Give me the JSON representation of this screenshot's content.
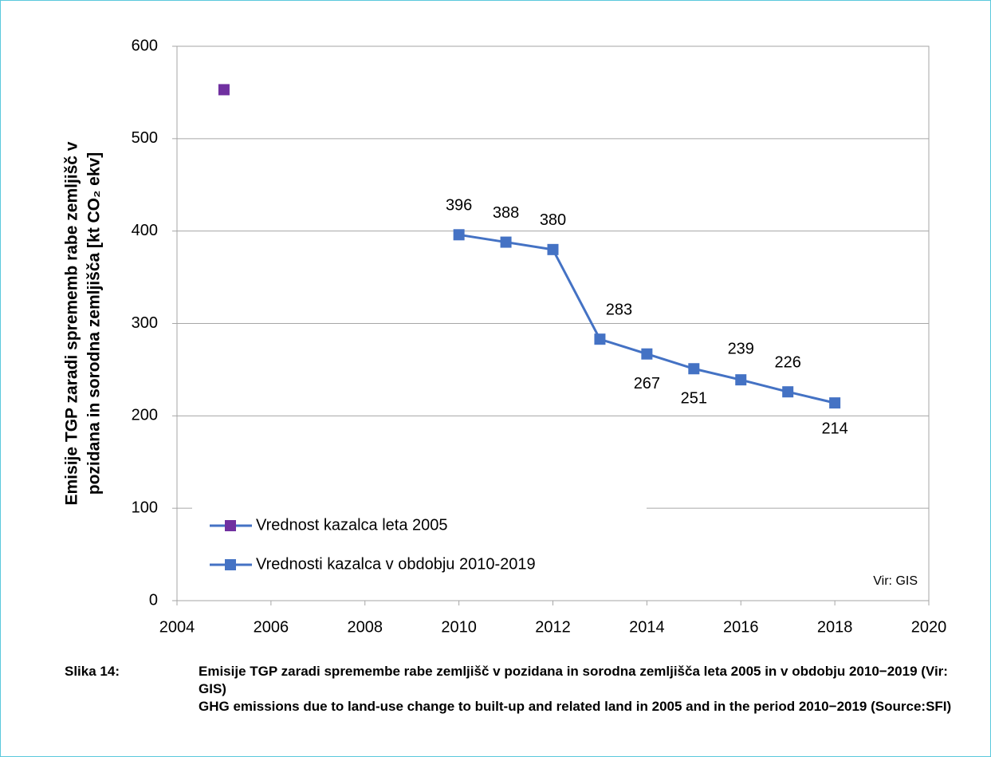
{
  "chart_data": {
    "type": "line",
    "y_label": [
      "Emisije TGP zaradi sprememb rabe zemljišč v",
      "pozidana in sorodna zemljišča [kt CO₂ ekv]"
    ],
    "annotation": "Vir: GIS",
    "xlim": [
      2004,
      2020
    ],
    "xticks": [
      2004,
      2006,
      2008,
      2010,
      2012,
      2014,
      2016,
      2018,
      2020
    ],
    "ylim": [
      0,
      600
    ],
    "yticks": [
      0,
      100,
      200,
      300,
      400,
      500,
      600
    ],
    "grid": true,
    "legend": "lower left",
    "series": [
      {
        "name": "Vrednost kazalca leta 2005",
        "color": "#7030a0",
        "x": [
          2005
        ],
        "values": [
          553
        ]
      },
      {
        "name": "Vrednosti kazalca v obdobju 2010-2019",
        "color": "#4472c4",
        "x": [
          2010,
          2011,
          2012,
          2013,
          2014,
          2015,
          2016,
          2017,
          2018
        ],
        "values": [
          396,
          388,
          380,
          283,
          267,
          251,
          239,
          226,
          214
        ]
      }
    ]
  },
  "caption": {
    "label": "Slika 14:",
    "lines": [
      "Emisije TGP zaradi spremembe rabe zemljišč v pozidana in sorodna zemljišča leta 2005 in v obdobju 2010−2019 (Vir: GIS)",
      "GHG emissions due to land-use change to built-up and related land in 2005 and in the period 2010−2019 (Source:SFI)"
    ]
  }
}
